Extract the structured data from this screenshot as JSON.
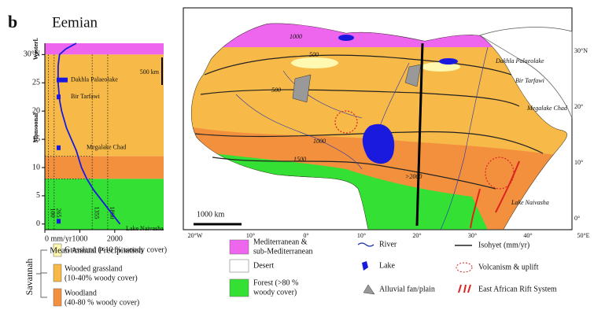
{
  "panel_label": "b",
  "title": "Eemian",
  "precip_chart": {
    "type": "line",
    "xlabel": "Mean Annual Precipitation",
    "xlim": [
      0,
      3400
    ],
    "xticks": [
      {
        "value": 0,
        "label": "0 mm/yr"
      },
      1000,
      2000
    ],
    "ylim": [
      -1,
      32
    ],
    "yticks": [
      0,
      5,
      10,
      15,
      20,
      25,
      {
        "value": 30,
        "label": "30°N"
      }
    ],
    "bands": [
      {
        "from": 30,
        "to": 32,
        "color": "#ee66ee"
      },
      {
        "from": 12,
        "to": 30,
        "color": "#f7b947"
      },
      {
        "from": 8,
        "to": 12,
        "color": "#f2903e"
      },
      {
        "from": -1,
        "to": 8,
        "color": "#33e033"
      }
    ],
    "thresholds": [
      100,
      265,
      1355,
      1800
    ],
    "series": [
      {
        "color": "#1a1adf",
        "y": [
          32,
          31,
          30,
          28,
          25,
          22,
          20,
          17,
          15,
          13,
          10,
          8,
          6,
          4,
          2,
          0
        ],
        "values": [
          900,
          600,
          420,
          380,
          380,
          420,
          480,
          620,
          760,
          900,
          1050,
          1200,
          1400,
          1650,
          1900,
          2150
        ]
      }
    ],
    "sites": [
      {
        "name": "Dakhla Palaeolake",
        "lat": 25.5
      },
      {
        "name": "Bir Tarfawi",
        "lat": 22.5
      },
      {
        "name": "Megalake Chad",
        "lat": 13.5
      },
      {
        "name": "Lake Naivasha",
        "lat": 0.5
      }
    ],
    "regimes": [
      "Westerl.",
      "Monsoonal"
    ],
    "scale": "500 km"
  },
  "map": {
    "scale": "1000 km",
    "bottom_ticks": [
      "20°W",
      "10°",
      "0°",
      "10°",
      "20°",
      "30°",
      "40°",
      "50°E"
    ],
    "right_ticks": [
      "30°N",
      "20°",
      "10°",
      "0°"
    ],
    "sites": [
      "Dakhla Palaeolake",
      "Bir Tarfawi",
      "Megalake Chad",
      "Lake Naivasha"
    ],
    "isohyets": [
      "1000",
      "500",
      "500",
      "1000",
      "1500",
      ">2000"
    ]
  },
  "legend": {
    "group": "Savannah",
    "items": [
      [
        "Grassland (<10 % woody cover)"
      ],
      [
        "Wooded grassland",
        "(10-40% woody cover)"
      ],
      [
        "Woodland",
        "(40-80 % woody cover)"
      ],
      [
        "Mediterranean &",
        "sub-Mediterranean"
      ],
      [
        "Desert"
      ],
      [
        "Forest (>80 %",
        "woody cover)"
      ],
      [
        "River"
      ],
      [
        "Lake"
      ],
      [
        "Alluvial fan/plain"
      ],
      [
        "Isohyet (mm/yr)"
      ],
      [
        "Volcanism & uplift"
      ],
      [
        "East African Rift System"
      ]
    ]
  }
}
